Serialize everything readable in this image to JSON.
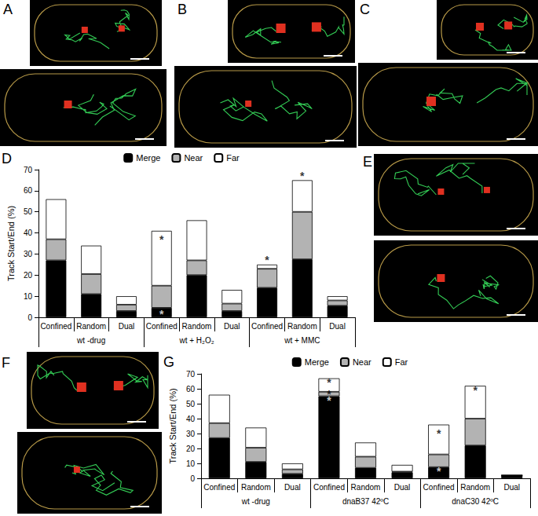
{
  "images": [
    {
      "label": "A"
    },
    {
      "label": "B"
    },
    {
      "label": "C"
    },
    {
      "label": "E"
    },
    {
      "label": "F"
    }
  ],
  "chart_data": [
    {
      "type": "bar",
      "title": "D",
      "stacked": true,
      "legend": "top",
      "grid": false,
      "ylabel": "Track Start/End (%)",
      "categories": [
        "Confined",
        "Random",
        "Dual",
        "Confined",
        "Random",
        "Dual",
        "Confined",
        "Random",
        "Dual"
      ],
      "groups": [
        "wt -drug",
        "wt + H₂O₂",
        "wt + MMC"
      ],
      "ylim": [
        0,
        70
      ],
      "yticks": [
        0,
        10,
        20,
        30,
        40,
        50,
        60,
        70
      ],
      "series": [
        {
          "name": "Merge",
          "color": "#000000",
          "values": [
            27,
            11,
            3,
            4.5,
            20,
            3,
            14,
            27.5,
            5.5
          ]
        },
        {
          "name": "Near",
          "color": "#b3b3b3",
          "values": [
            10,
            9.5,
            3,
            10.5,
            7,
            3.5,
            9,
            22.5,
            2.5
          ]
        },
        {
          "name": "Far",
          "color": "#ffffff",
          "values": [
            19,
            13.5,
            4,
            26,
            19,
            6.5,
            2,
            15,
            2
          ]
        }
      ],
      "annotations": [
        {
          "text": "*",
          "x": 3,
          "y": 37
        },
        {
          "text": "*",
          "x": 3,
          "y": 1.5
        },
        {
          "text": "*",
          "x": 6,
          "y": 27
        },
        {
          "text": "*",
          "x": 7,
          "y": 67
        }
      ]
    },
    {
      "type": "bar",
      "title": "G",
      "stacked": true,
      "legend": "top",
      "grid": false,
      "ylabel": "Track Start/End (%)",
      "categories": [
        "Confined",
        "Random",
        "Dual",
        "Confined",
        "Random",
        "Dual",
        "Confined",
        "Random",
        "Dual"
      ],
      "groups": [
        "wt -drug",
        "dnaB37 42ºC",
        "dnaC30 42ºC"
      ],
      "ylim": [
        0,
        70
      ],
      "yticks": [
        0,
        10,
        20,
        30,
        40,
        50,
        60,
        70
      ],
      "series": [
        {
          "name": "Merge",
          "color": "#000000",
          "values": [
            27,
            11,
            3,
            55,
            7,
            4,
            7.5,
            22,
            2
          ]
        },
        {
          "name": "Near",
          "color": "#b3b3b3",
          "values": [
            10,
            9.5,
            3,
            3,
            7.5,
            0.5,
            8.5,
            18,
            0
          ]
        },
        {
          "name": "Far",
          "color": "#ffffff",
          "values": [
            19,
            13.5,
            4,
            9,
            9.5,
            4.5,
            20,
            22,
            0
          ]
        }
      ],
      "annotations": [
        {
          "text": "*",
          "x": 3,
          "y": 64
        },
        {
          "text": "*",
          "x": 3,
          "y": 56.5
        },
        {
          "text": "*",
          "x": 3,
          "y": 52
        },
        {
          "text": "*",
          "x": 6,
          "y": 30
        },
        {
          "text": "*",
          "x": 6,
          "y": 4.5
        },
        {
          "text": "*",
          "x": 7,
          "y": 59
        }
      ]
    }
  ]
}
